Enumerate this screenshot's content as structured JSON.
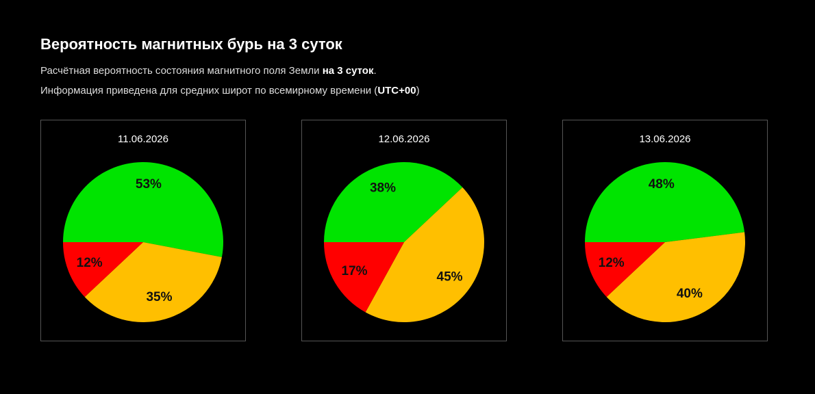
{
  "header": {
    "title": "Вероятность магнитных бурь на 3 суток",
    "lines": [
      [
        "Расчётная вероятность состояния магнитного поля Земли ",
        "на 3 суток",
        "."
      ],
      [
        "Информация приведена для средних широт по всемирному времени (",
        "UTC+00",
        ")"
      ]
    ]
  },
  "chart_data": [
    {
      "type": "pie",
      "title": "11.06.2026",
      "values": [
        53,
        35,
        12
      ],
      "value_labels": [
        "53%",
        "35%",
        "12%"
      ],
      "colors": [
        "#00e400",
        "#ffbf00",
        "#ff0000"
      ]
    },
    {
      "type": "pie",
      "title": "12.06.2026",
      "values": [
        38,
        45,
        17
      ],
      "value_labels": [
        "38%",
        "45%",
        "17%"
      ],
      "colors": [
        "#00e400",
        "#ffbf00",
        "#ff0000"
      ]
    },
    {
      "type": "pie",
      "title": "13.06.2026",
      "values": [
        48,
        40,
        12
      ],
      "value_labels": [
        "48%",
        "40%",
        "12%"
      ],
      "colors": [
        "#00e400",
        "#ffbf00",
        "#ff0000"
      ]
    }
  ]
}
